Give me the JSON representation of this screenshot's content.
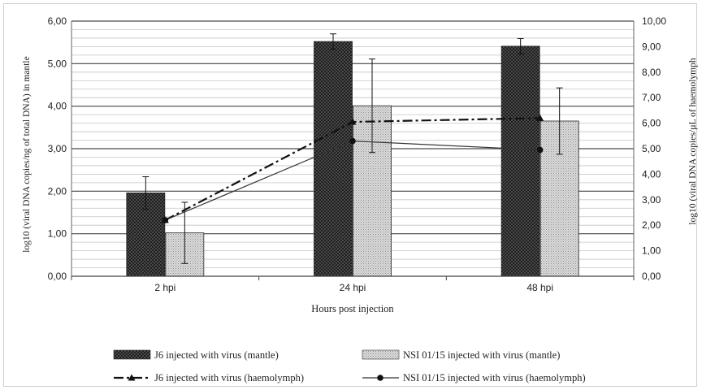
{
  "chart_data": {
    "type": "bar",
    "categories": [
      "2 hpi",
      "24 hpi",
      "48 hpi"
    ],
    "xlabel": "Hours post injection",
    "ylabel_left": "log10 (viral DNA copies/ng of total DNA) in mantle",
    "ylabel_right": "log10 (viral DNA copies/µL of haemolymph",
    "ylim_left": [
      0,
      6
    ],
    "ylim_right": [
      0,
      10
    ],
    "yticks_left": [
      "0,00",
      "1,00",
      "2,00",
      "3,00",
      "4,00",
      "5,00",
      "6,00"
    ],
    "yticks_right": [
      "0,00",
      "1,00",
      "2,00",
      "3,00",
      "4,00",
      "5,00",
      "6,00",
      "7,00",
      "8,00",
      "9,00",
      "10,00"
    ],
    "grid": true,
    "legend_position": "bottom",
    "series": [
      {
        "name": "J6 injected with virus (mantle)",
        "type": "bar",
        "axis": "left",
        "values": [
          1.96,
          5.52,
          5.41
        ],
        "error": [
          0.38,
          0.18,
          0.18
        ],
        "color": "#3c3c3c"
      },
      {
        "name": "NSI 01/15 injected with virus (mantle)",
        "type": "bar",
        "axis": "left",
        "values": [
          1.02,
          4.01,
          3.65
        ],
        "error": [
          0.72,
          1.1,
          0.78
        ],
        "color": "#c8c8c8"
      },
      {
        "name": "J6 injected with virus  (haemolymph)",
        "type": "line",
        "axis": "right",
        "values": [
          2.2,
          6.05,
          6.2
        ],
        "color": "#111111",
        "dash": "dash-dot",
        "marker": "triangle"
      },
      {
        "name": "NSI 01/15 injected with virus  (haemolymph)",
        "type": "line",
        "axis": "right",
        "values": [
          2.2,
          5.3,
          4.95
        ],
        "color": "#333333",
        "dash": "solid",
        "marker": "circle"
      }
    ]
  }
}
